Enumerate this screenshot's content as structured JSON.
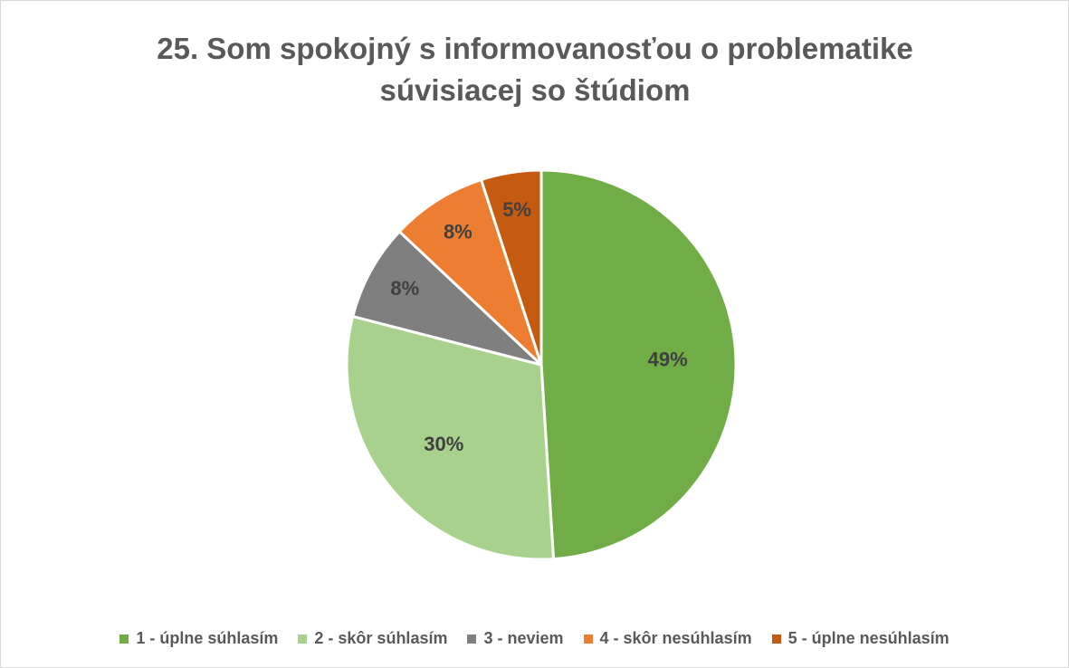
{
  "chart_data": {
    "type": "pie",
    "title": "25. Som spokojný s informovanosťou o problematike súvisiacej so štúdiom",
    "categories": [
      "1 - úplne súhlasím",
      "2 - skôr súhlasím",
      "3 - neviem",
      "4 - skôr nesúhlasím",
      "5 - úplne nesúhlasím"
    ],
    "values": [
      49,
      30,
      8,
      8,
      5
    ],
    "value_labels": [
      "49%",
      "30%",
      "8%",
      "8%",
      "5%"
    ],
    "colors": [
      "#70ad47",
      "#a9d18e",
      "#7f7f7f",
      "#ed7d31",
      "#c55a11"
    ],
    "legend": "bottom"
  }
}
